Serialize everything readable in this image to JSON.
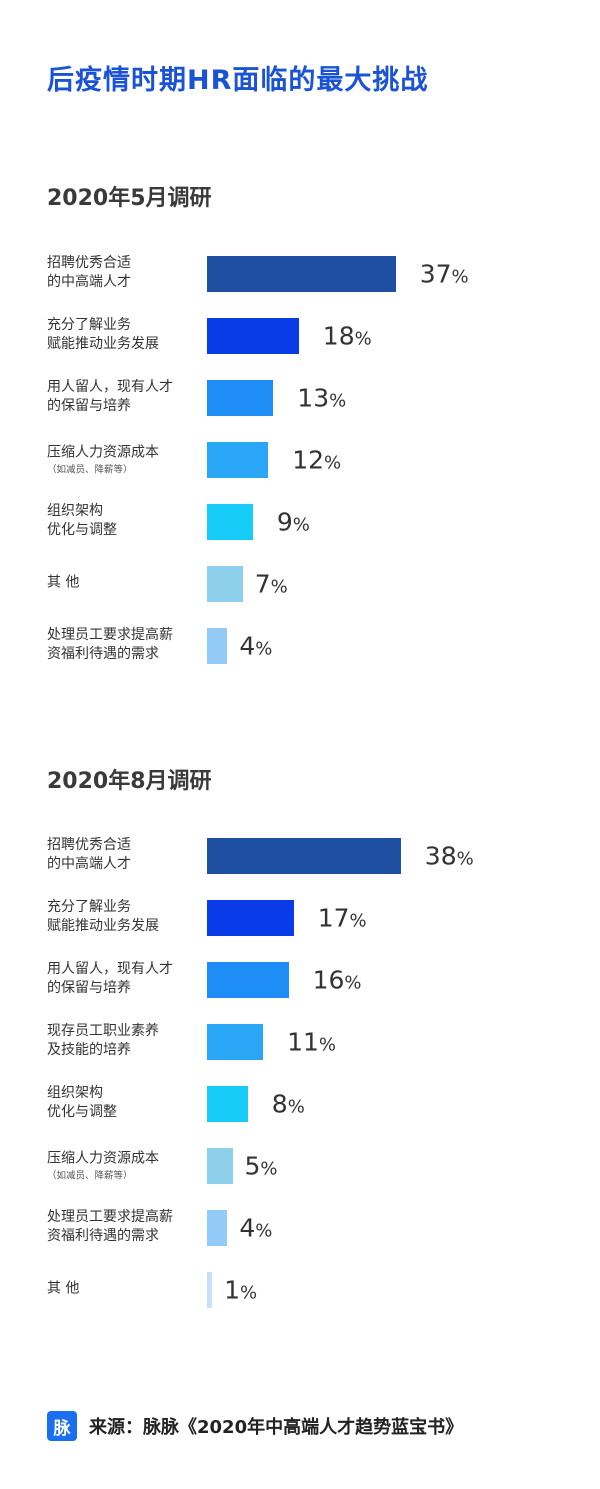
{
  "title": "后疫情时期HR面临的最大挑战",
  "source": {
    "logo_text": "脉",
    "text": "来源：脉脉《2020年中高端人才趋势蓝宝书》"
  },
  "chart_data": [
    {
      "type": "bar",
      "orientation": "horizontal",
      "title": "2020年5月调研",
      "unit": "%",
      "categories": [
        [
          "招聘优秀合适",
          "的中高端人才",
          ""
        ],
        [
          "充分了解业务",
          "赋能推动业务发展",
          ""
        ],
        [
          "用人留人，现有人才",
          "的保留与培养",
          ""
        ],
        [
          "压缩人力资源成本",
          "",
          "（如减员、降薪等）"
        ],
        [
          "组织架构",
          "优化与调整",
          ""
        ],
        [
          "其 他",
          "",
          ""
        ],
        [
          "处理员工要求提高薪",
          "资福利待遇的需求",
          ""
        ]
      ],
      "values": [
        37,
        18,
        13,
        12,
        9,
        7,
        4
      ],
      "colors": [
        "#1e4fa3",
        "#0a3be8",
        "#1e8df5",
        "#29a6f5",
        "#17cdf7",
        "#8ecfec",
        "#92cbf7"
      ]
    },
    {
      "type": "bar",
      "orientation": "horizontal",
      "title": "2020年8月调研",
      "unit": "%",
      "categories": [
        [
          "招聘优秀合适",
          "的中高端人才",
          ""
        ],
        [
          "充分了解业务",
          "赋能推动业务发展",
          ""
        ],
        [
          "用人留人，现有人才",
          "的保留与培养",
          ""
        ],
        [
          "现存员工职业素养",
          "及技能的培养",
          ""
        ],
        [
          "组织架构",
          "优化与调整",
          ""
        ],
        [
          "压缩人力资源成本",
          "",
          "（如减员、降薪等）"
        ],
        [
          "处理员工要求提高薪",
          "资福利待遇的需求",
          ""
        ],
        [
          "其 他",
          "",
          ""
        ]
      ],
      "values": [
        38,
        17,
        16,
        11,
        8,
        5,
        4,
        1
      ],
      "colors": [
        "#1e4fa3",
        "#0a3be8",
        "#1e8df5",
        "#29a6f5",
        "#17cdf7",
        "#8ecfec",
        "#92cbf7",
        "#c6e1f8"
      ]
    }
  ]
}
